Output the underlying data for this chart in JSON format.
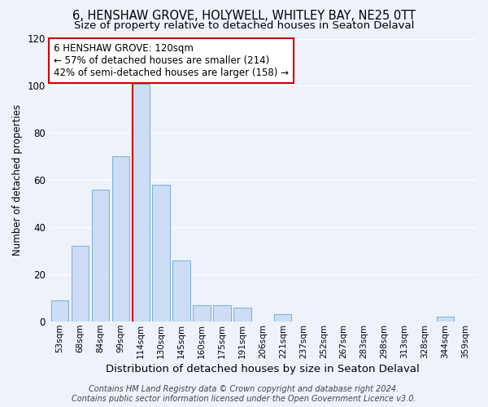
{
  "title": "6, HENSHAW GROVE, HOLYWELL, WHITLEY BAY, NE25 0TT",
  "subtitle": "Size of property relative to detached houses in Seaton Delaval",
  "xlabel": "Distribution of detached houses by size in Seaton Delaval",
  "ylabel": "Number of detached properties",
  "bar_labels": [
    "53sqm",
    "68sqm",
    "84sqm",
    "99sqm",
    "114sqm",
    "130sqm",
    "145sqm",
    "160sqm",
    "175sqm",
    "191sqm",
    "206sqm",
    "221sqm",
    "237sqm",
    "252sqm",
    "267sqm",
    "283sqm",
    "298sqm",
    "313sqm",
    "328sqm",
    "344sqm",
    "359sqm"
  ],
  "bar_heights": [
    9,
    32,
    56,
    70,
    101,
    58,
    26,
    7,
    7,
    6,
    0,
    3,
    0,
    0,
    0,
    0,
    0,
    0,
    0,
    2,
    0
  ],
  "bar_color": "#ccddf5",
  "bar_edge_color": "#7bafd4",
  "highlight_bar_index": 4,
  "highlight_color": "#cc0000",
  "ylim": [
    0,
    120
  ],
  "yticks": [
    0,
    20,
    40,
    60,
    80,
    100,
    120
  ],
  "annotation_title": "6 HENSHAW GROVE: 120sqm",
  "annotation_line1": "← 57% of detached houses are smaller (214)",
  "annotation_line2": "42% of semi-detached houses are larger (158) →",
  "footer1": "Contains HM Land Registry data © Crown copyright and database right 2024.",
  "footer2": "Contains public sector information licensed under the Open Government Licence v3.0.",
  "background_color": "#eef2fb",
  "grid_color": "#ffffff",
  "title_fontsize": 10.5,
  "subtitle_fontsize": 9.5,
  "annotation_fontsize": 8.5,
  "footer_fontsize": 7.0,
  "ylabel_fontsize": 8.5,
  "xlabel_fontsize": 9.5
}
